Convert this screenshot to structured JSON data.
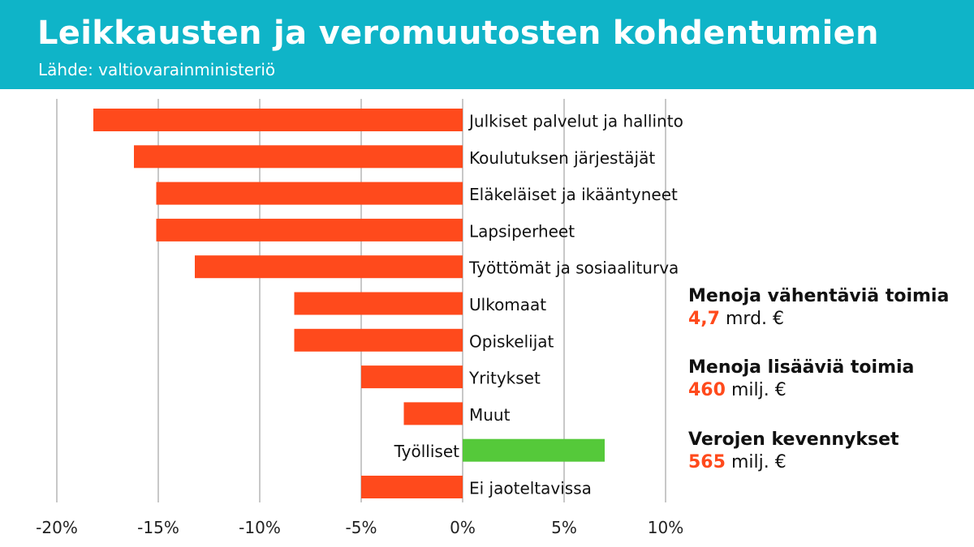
{
  "header": {
    "title": "Leikkausten ja veromuutosten kohdentumien",
    "subtitle": "Lähde: valtiovarainministeriö"
  },
  "colors": {
    "header_bg": "#0fb4c8",
    "negative_bar": "#ff4a1c",
    "positive_bar": "#55c93a",
    "grid": "#c8c8c8",
    "highlight_number": "#ff4a1c"
  },
  "chart_data": {
    "type": "bar",
    "orientation": "horizontal",
    "title": "Leikkausten ja veromuutosten kohdentumien",
    "subtitle": "Lähde: valtiovarainministeriö",
    "categories": [
      "Julkiset palvelut ja hallinto",
      "Koulutuksen järjestäjät",
      "Eläkeläiset ja ikääntyneet",
      "Lapsiperheet",
      "Työttömät ja sosiaaliturva",
      "Ulkomaat",
      "Opiskelijat",
      "Yritykset",
      "Muut",
      "Työlliset",
      "Ei jaoteltavissa"
    ],
    "values": [
      -18.2,
      -16.2,
      -15.1,
      -15.1,
      -13.2,
      -8.3,
      -8.3,
      -5.0,
      -2.9,
      7.0,
      -5.0
    ],
    "xlim": [
      -20,
      10
    ],
    "xticks": [
      -20,
      -15,
      -10,
      -5,
      0,
      5,
      10
    ],
    "xtick_labels": [
      "-20%",
      "-15%",
      "-10%",
      "-5%",
      "0%",
      "5%",
      "10%"
    ],
    "grid": "vertical",
    "legend": "none"
  },
  "summary": [
    {
      "heading": "Menoja vähentäviä toimia",
      "number": "4,7",
      "unit": "mrd. €"
    },
    {
      "heading": "Menoja lisääviä toimia",
      "number": "460",
      "unit": "milj. €"
    },
    {
      "heading": "Verojen kevennykset",
      "number": "565",
      "unit": "milj. €"
    }
  ]
}
